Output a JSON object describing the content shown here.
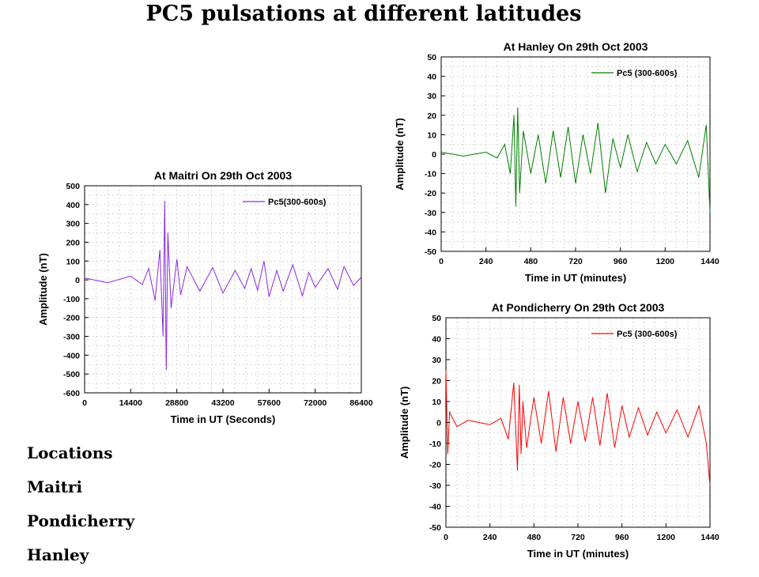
{
  "slide": {
    "title": "PC5 pulsations at different latitudes",
    "locations_heading": "Locations",
    "locations": [
      "Maitri",
      "Pondicherry",
      "Hanley"
    ]
  },
  "chart_data": [
    {
      "id": "maitri",
      "type": "line",
      "title": "At Maitri On 29th Oct 2003",
      "xlabel": "Time in UT (Seconds)",
      "ylabel": "Amplitude (nT)",
      "xlim": [
        0,
        86400
      ],
      "ylim": [
        -600,
        500
      ],
      "xticks": [
        0,
        14400,
        28800,
        43200,
        57600,
        72000,
        86400
      ],
      "yticks": [
        500,
        400,
        300,
        200,
        100,
        0,
        -100,
        -200,
        -300,
        -400,
        -500,
        -600
      ],
      "grid": true,
      "legend_position": "top-right",
      "color": "#8a2be2",
      "series": [
        {
          "name": "Pc5(300-600s)",
          "x": [
            0,
            7200,
            14400,
            18000,
            20000,
            22000,
            23500,
            24500,
            25000,
            25500,
            26000,
            27000,
            28800,
            30000,
            32000,
            36000,
            40000,
            43200,
            47000,
            50000,
            52000,
            54000,
            56000,
            57600,
            60000,
            62000,
            65000,
            68000,
            70000,
            72000,
            76000,
            79000,
            81000,
            84000,
            86400
          ],
          "y": [
            10,
            -15,
            20,
            -25,
            60,
            -110,
            160,
            -300,
            420,
            -480,
            250,
            -150,
            110,
            -80,
            70,
            -60,
            65,
            -70,
            50,
            -45,
            60,
            -55,
            100,
            -90,
            50,
            -60,
            80,
            -85,
            40,
            -40,
            60,
            -50,
            70,
            -30,
            15
          ]
        }
      ]
    },
    {
      "id": "hanley",
      "type": "line",
      "title": "At Hanley On 29th Oct 2003",
      "xlabel": "Time in UT (minutes)",
      "ylabel": "Amplitude (nT)",
      "xlim": [
        0,
        1440
      ],
      "ylim": [
        -50,
        50
      ],
      "xticks": [
        0,
        240,
        480,
        720,
        960,
        1200,
        1440
      ],
      "yticks": [
        50,
        40,
        30,
        20,
        10,
        0,
        -10,
        -20,
        -30,
        -40,
        -50
      ],
      "grid": true,
      "legend_position": "top-right",
      "color": "#008000",
      "series": [
        {
          "name": "Pc5 (300-600s)",
          "x": [
            0,
            120,
            240,
            300,
            340,
            370,
            390,
            400,
            410,
            420,
            440,
            480,
            520,
            560,
            600,
            640,
            680,
            720,
            760,
            800,
            840,
            880,
            920,
            960,
            1000,
            1050,
            1100,
            1150,
            1200,
            1260,
            1320,
            1380,
            1420,
            1440
          ],
          "y": [
            1,
            -1,
            1,
            -2,
            5,
            -10,
            20,
            -27,
            24,
            -20,
            12,
            -10,
            10,
            -15,
            12,
            -12,
            14,
            -15,
            10,
            -10,
            16,
            -20,
            8,
            -7,
            10,
            -9,
            6,
            -5,
            5,
            -5,
            7,
            -12,
            15,
            -30
          ]
        }
      ]
    },
    {
      "id": "pondicherry",
      "type": "line",
      "title": "At Pondicherry On 29th Oct 2003",
      "xlabel": "Time in UT (minutes)",
      "ylabel": "Amplitude (nT)",
      "xlim": [
        0,
        1440
      ],
      "ylim": [
        -50,
        50
      ],
      "xticks": [
        0,
        240,
        480,
        720,
        960,
        1200,
        1440
      ],
      "yticks": [
        50,
        40,
        30,
        20,
        10,
        0,
        -10,
        -20,
        -30,
        -40,
        -50
      ],
      "grid": true,
      "legend_position": "top-right",
      "color": "#ff0000",
      "series": [
        {
          "name": "Pc5 (300-600s)",
          "x": [
            0,
            10,
            20,
            60,
            120,
            240,
            300,
            340,
            370,
            390,
            400,
            410,
            420,
            440,
            480,
            520,
            560,
            600,
            640,
            680,
            720,
            760,
            800,
            840,
            880,
            920,
            960,
            1000,
            1050,
            1100,
            1150,
            1200,
            1260,
            1320,
            1380,
            1420,
            1440
          ],
          "y": [
            25,
            -15,
            5,
            -2,
            1,
            -1,
            2,
            -8,
            19,
            -23,
            18,
            -15,
            10,
            -12,
            12,
            -10,
            15,
            -14,
            12,
            -10,
            10,
            -9,
            12,
            -11,
            14,
            -12,
            8,
            -7,
            7,
            -6,
            5,
            -5,
            6,
            -7,
            8,
            -10,
            -30
          ]
        }
      ]
    }
  ]
}
